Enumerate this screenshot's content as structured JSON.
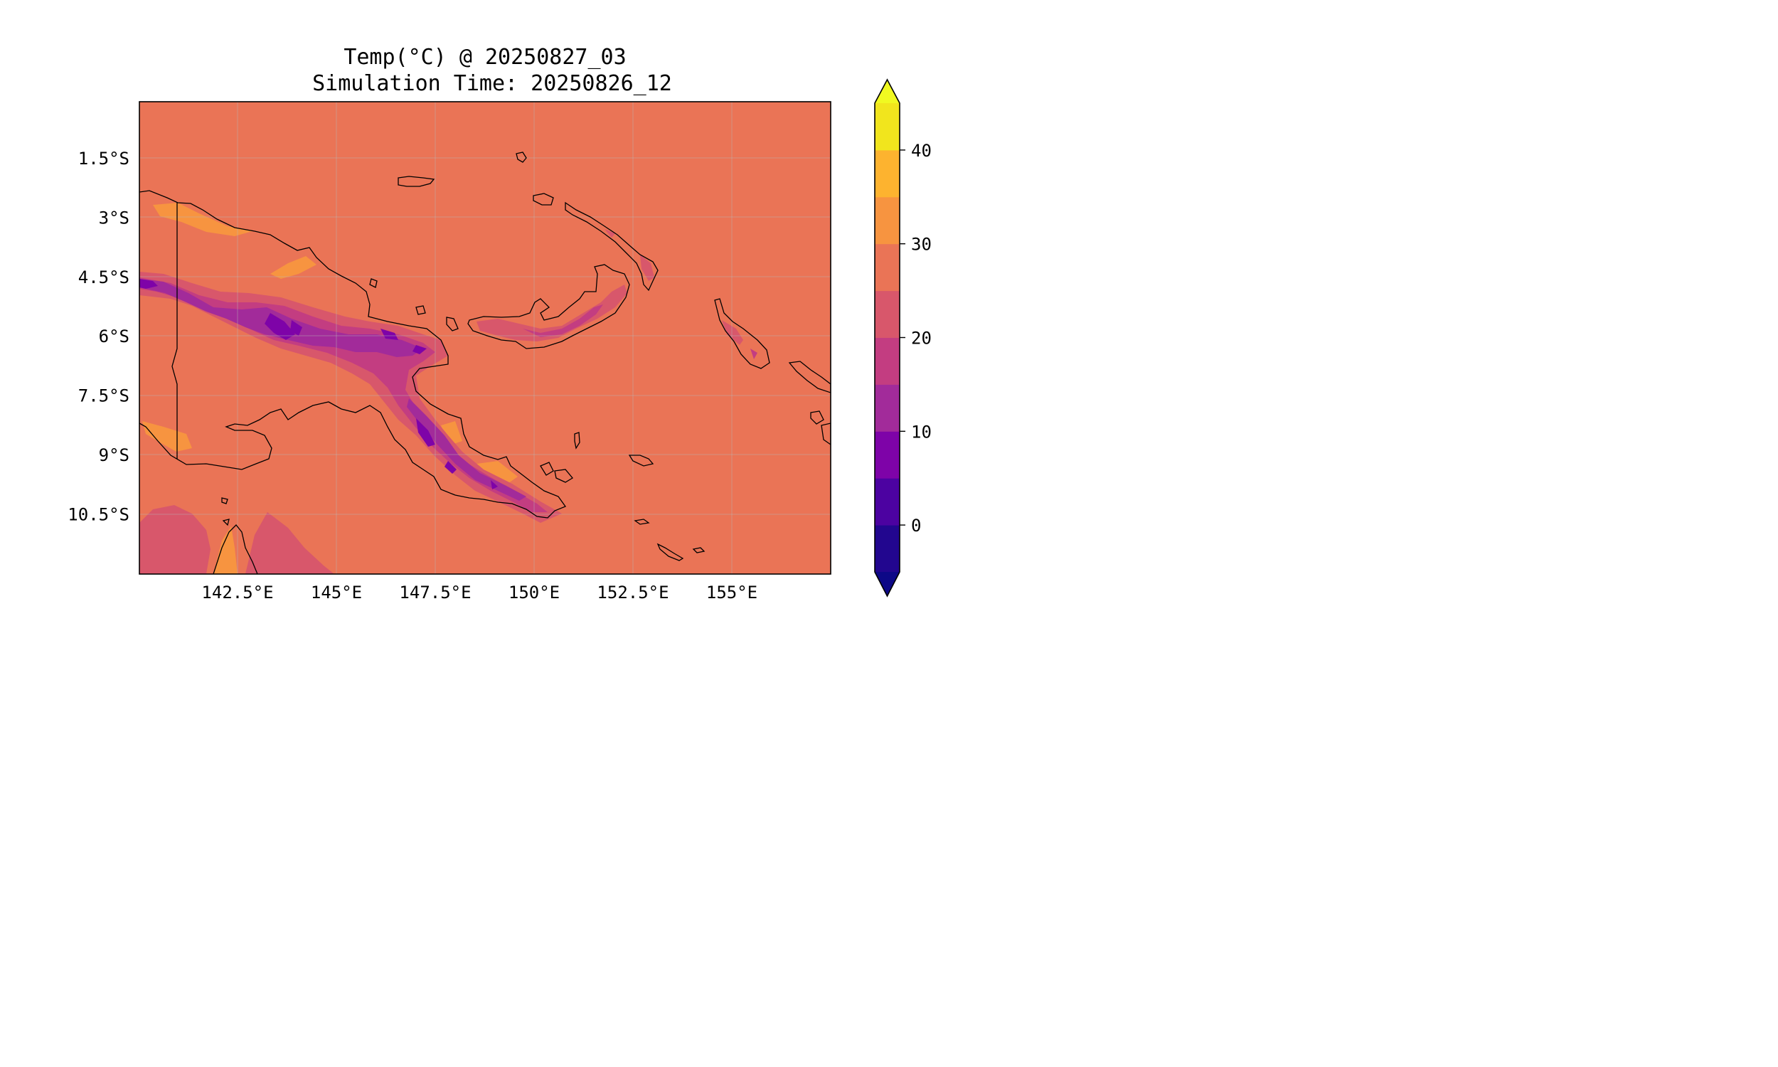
{
  "title": {
    "line1": "Temp(°C) @ 20250827_03",
    "line2": "Simulation Time: 20250826_12"
  },
  "map": {
    "variable": "Temperature",
    "units": "°C",
    "region": "Papua New Guinea",
    "lon_range": [
      140.0,
      157.5
    ],
    "lat_range": [
      -12.0,
      -0.1
    ],
    "x_ticks": [
      {
        "value": 142.5,
        "label": "142.5°E"
      },
      {
        "value": 145.0,
        "label": "145°E"
      },
      {
        "value": 147.5,
        "label": "147.5°E"
      },
      {
        "value": 150.0,
        "label": "150°E"
      },
      {
        "value": 152.5,
        "label": "152.5°E"
      },
      {
        "value": 155.0,
        "label": "155°E"
      }
    ],
    "y_ticks": [
      {
        "value": -1.5,
        "label": "1.5°S"
      },
      {
        "value": -3.0,
        "label": "3°S"
      },
      {
        "value": -4.5,
        "label": "4.5°S"
      },
      {
        "value": -6.0,
        "label": "6°S"
      },
      {
        "value": -7.5,
        "label": "7.5°S"
      },
      {
        "value": -9.0,
        "label": "9°S"
      },
      {
        "value": -10.5,
        "label": "10.5°S"
      }
    ],
    "background_level_range": [
      25,
      30
    ],
    "grid": true
  },
  "colorbar": {
    "colormap": "plasma",
    "extend": "both",
    "min": -5,
    "max": 45,
    "levels": [
      -5,
      0,
      5,
      10,
      15,
      20,
      25,
      30,
      35,
      40,
      45
    ],
    "colors": [
      "#22068f",
      "#4c02a1",
      "#7e03a8",
      "#a22b9a",
      "#c33d81",
      "#d8576b",
      "#ea7456",
      "#f79440",
      "#fdb32f",
      "#f1e51d"
    ],
    "under_color": "#0d0887",
    "over_color": "#f0f921",
    "ticks": [
      {
        "value": 0,
        "label": "0"
      },
      {
        "value": 10,
        "label": "10"
      },
      {
        "value": 20,
        "label": "20"
      },
      {
        "value": 30,
        "label": "30"
      },
      {
        "value": 40,
        "label": "40"
      }
    ]
  }
}
